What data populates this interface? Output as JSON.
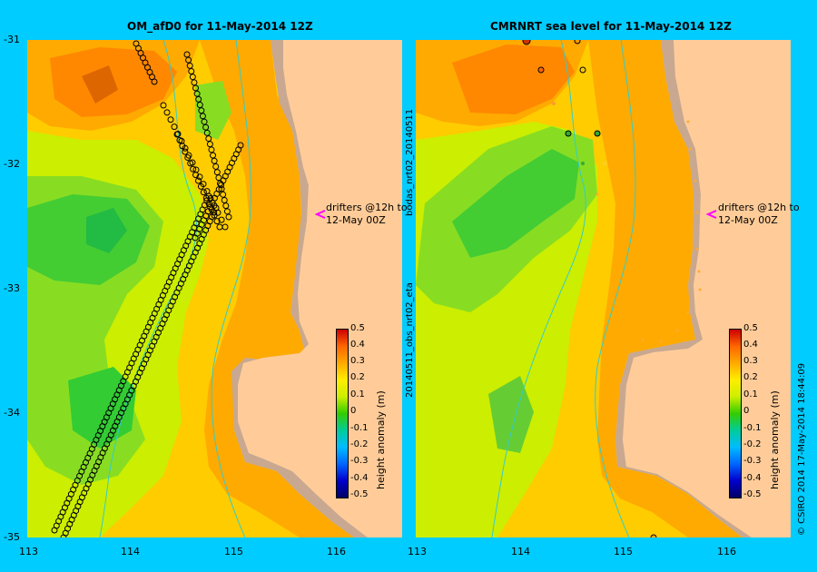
{
  "left_panel": {
    "title": "OM_afD0 for 11-May-2014 12Z",
    "drifter_note_line1": "drifters @12h to",
    "drifter_note_line2": "12-May 00Z"
  },
  "right_panel": {
    "title": "CMRNRT sea level  for 11-May-2014 12Z",
    "drifter_note_line1": "drifters @12h to",
    "drifter_note_line2": "12-May 00Z",
    "side_label_top": "bodas_nrt02_20140511",
    "side_label_bottom": "20140511_obs_nrt02_eta"
  },
  "lat_ticks": [
    "-31",
    "-32",
    "-33",
    "-34",
    "-35"
  ],
  "lon_ticks_left": [
    "113",
    "114",
    "115",
    "116"
  ],
  "lon_ticks_right": [
    "113",
    "114",
    "115",
    "116"
  ],
  "colorbar": {
    "label": "height anomaly (m)",
    "ticks": [
      "0.5",
      "0.4",
      "0.3",
      "0.2",
      "0.1",
      "0",
      "-0.1",
      "-0.2",
      "-0.3",
      "-0.4",
      "-0.5"
    ],
    "range": [
      -0.5,
      0.5
    ]
  },
  "credit": "© CSIRO 2014   17-May-2014 18:44:09",
  "colors": {
    "background": "#00ccff",
    "land": "#ffcc99",
    "coast_shelf": "#c8a890",
    "drifter_arrow": "#ff00ff",
    "bathymetry_contour": "#33cccc"
  }
}
